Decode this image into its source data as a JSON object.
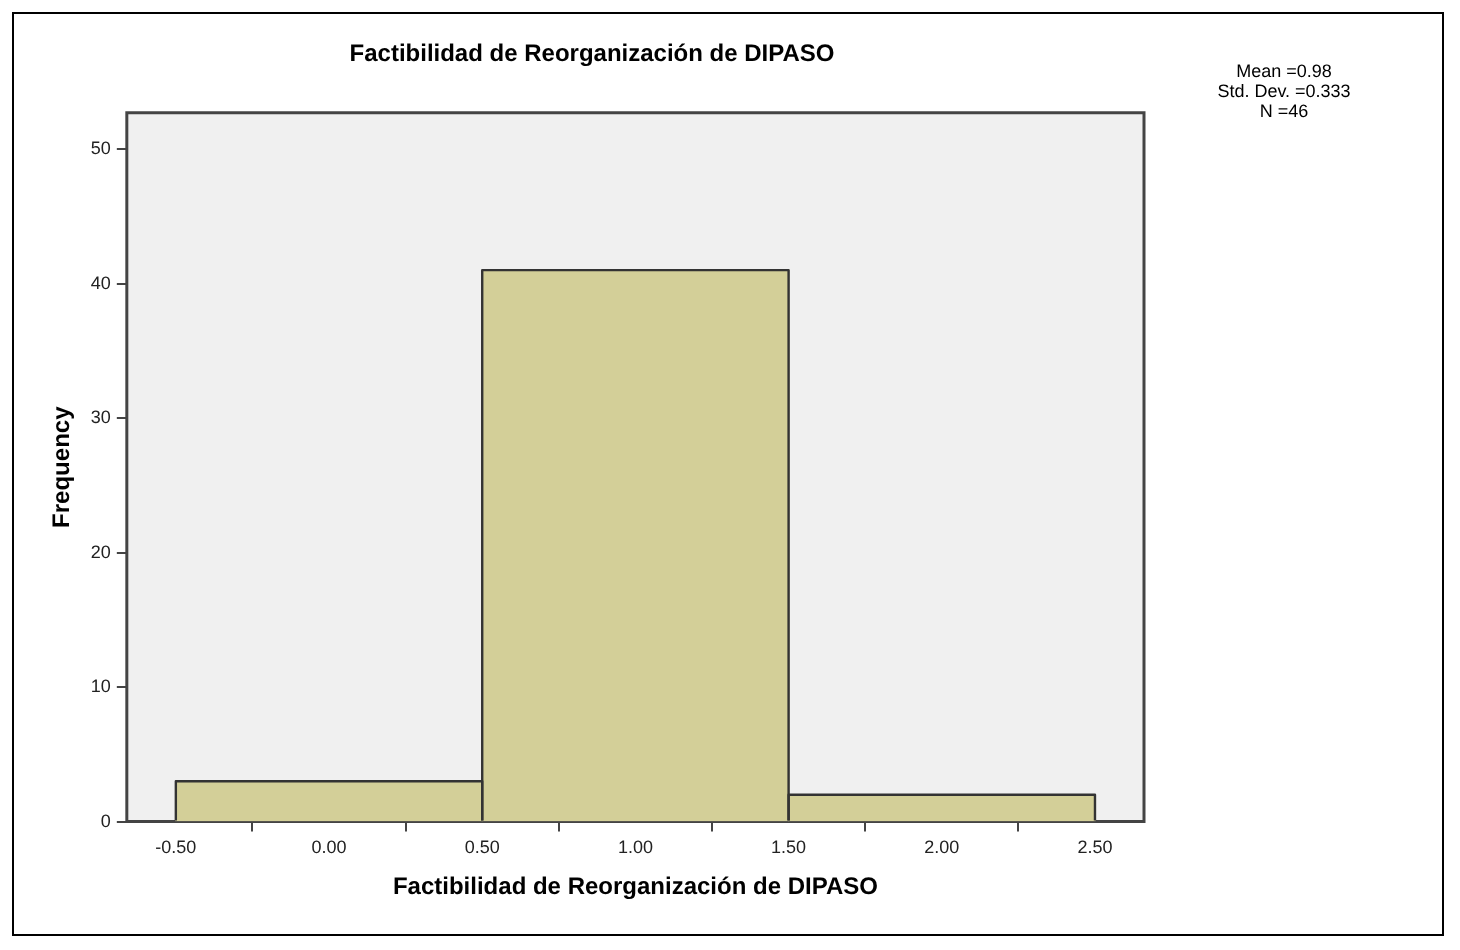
{
  "chart_data": {
    "type": "histogram",
    "title": "Factibilidad de Reorganización de DIPASO",
    "xlabel": "Factibilidad de Reorganización de DIPASO",
    "ylabel": "Frequency",
    "bins": [
      -0.5,
      0.5,
      1.5,
      2.5
    ],
    "values": [
      3,
      41,
      2
    ],
    "color": "#d3cf98",
    "xlim": [
      -0.66,
      2.66
    ],
    "xticks": [
      {
        "value": -0.5,
        "label": "-0.50"
      },
      {
        "value": 0,
        "label": "0.00"
      },
      {
        "value": 0.5,
        "label": "0.50"
      },
      {
        "value": 1,
        "label": "1.00"
      },
      {
        "value": 1.5,
        "label": "1.50"
      },
      {
        "value": 2,
        "label": "2.00"
      },
      {
        "value": 2.5,
        "label": "2.50"
      }
    ],
    "ylim": [
      0,
      52.7
    ],
    "yticks": [
      0,
      10,
      20,
      30,
      40,
      50
    ],
    "grid": false,
    "legend": false,
    "annotations": [
      "Mean =0.98",
      "Std. Dev. =0.333",
      "N =46"
    ]
  }
}
